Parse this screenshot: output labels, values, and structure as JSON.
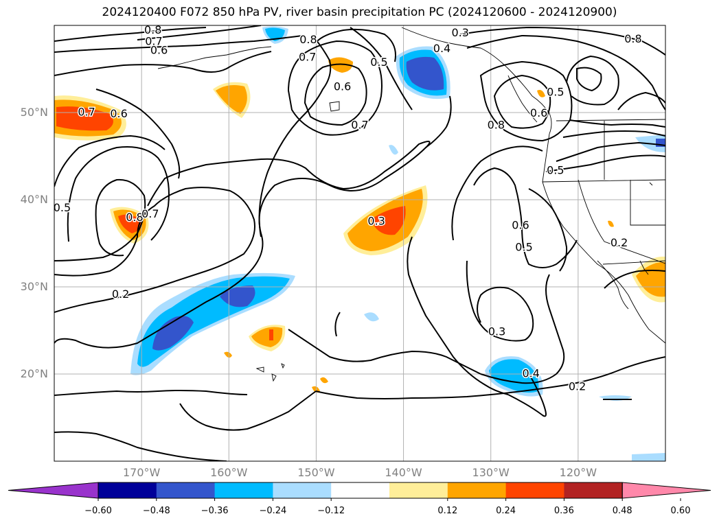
{
  "title": "2024120400 F072 850 hPa PV, river basin precipitation PC (2024120600 - 2024120900)",
  "map": {
    "lon_range": [
      -180,
      -110
    ],
    "lat_range": [
      10,
      60
    ],
    "lat_ticks": [
      {
        "value": 50,
        "label": "50°N"
      },
      {
        "value": 40,
        "label": "40°N"
      },
      {
        "value": 30,
        "label": "30°N"
      },
      {
        "value": 20,
        "label": "20°N"
      }
    ],
    "lon_ticks": [
      {
        "value": -170,
        "label": "170°W"
      },
      {
        "value": -160,
        "label": "160°W"
      },
      {
        "value": -150,
        "label": "150°W"
      },
      {
        "value": -140,
        "label": "140°W"
      },
      {
        "value": -130,
        "label": "130°W"
      },
      {
        "value": -120,
        "label": "120°W"
      }
    ],
    "grid": true,
    "contour_labels": [
      {
        "text": "0.8",
        "lon": -168.7,
        "lat": 59.4
      },
      {
        "text": "0.7",
        "lon": -168.6,
        "lat": 58.1
      },
      {
        "text": "0.6",
        "lon": -168.0,
        "lat": 57.1
      },
      {
        "text": "0.8",
        "lon": -150.9,
        "lat": 58.3
      },
      {
        "text": "0.7",
        "lon": -151.0,
        "lat": 56.3
      },
      {
        "text": "0.5",
        "lon": -142.8,
        "lat": 55.7
      },
      {
        "text": "0.6",
        "lon": -147.0,
        "lat": 52.9
      },
      {
        "text": "0.7",
        "lon": -145.0,
        "lat": 48.5
      },
      {
        "text": "0.3",
        "lon": -133.5,
        "lat": 59.1
      },
      {
        "text": "0.4",
        "lon": -135.6,
        "lat": 57.3
      },
      {
        "text": "0.8",
        "lon": -113.7,
        "lat": 58.4
      },
      {
        "text": "0.5",
        "lon": -122.6,
        "lat": 52.3
      },
      {
        "text": "0.6",
        "lon": -124.5,
        "lat": 49.9
      },
      {
        "text": "0.8",
        "lon": -129.4,
        "lat": 48.5
      },
      {
        "text": "0.5",
        "lon": -122.6,
        "lat": 43.3
      },
      {
        "text": "0.7",
        "lon": -176.3,
        "lat": 50.0
      },
      {
        "text": "0.6",
        "lon": -172.6,
        "lat": 49.8
      },
      {
        "text": "0.5",
        "lon": -179.1,
        "lat": 39.0
      },
      {
        "text": "0.8",
        "lon": -170.8,
        "lat": 37.9
      },
      {
        "text": "0.7",
        "lon": -169.0,
        "lat": 38.3
      },
      {
        "text": "0.3",
        "lon": -143.1,
        "lat": 37.5
      },
      {
        "text": "0.6",
        "lon": -126.6,
        "lat": 37.0
      },
      {
        "text": "0.5",
        "lon": -126.2,
        "lat": 34.5
      },
      {
        "text": "0.2",
        "lon": -115.3,
        "lat": 35.0
      },
      {
        "text": "0.2",
        "lon": -172.4,
        "lat": 29.1
      },
      {
        "text": "0.3",
        "lon": -129.3,
        "lat": 24.8
      },
      {
        "text": "0.4",
        "lon": -125.4,
        "lat": 20.0
      },
      {
        "text": "0.2",
        "lon": -120.1,
        "lat": 18.5
      }
    ]
  },
  "colorbar": {
    "colors": [
      "#9933cc",
      "#000099",
      "#3355cc",
      "#00bbff",
      "#aaddff",
      "#ffffff",
      "#ffee99",
      "#ffa500",
      "#ff4400",
      "#b22222",
      "#ff88aa"
    ],
    "tick_values": [
      -0.6,
      -0.48,
      -0.36,
      -0.24,
      -0.12,
      0.12,
      0.24,
      0.36,
      0.48,
      0.6
    ],
    "tick_labels": [
      "−0.60",
      "−0.48",
      "−0.36",
      "−0.24",
      "−0.12",
      "0.12",
      "0.24",
      "0.36",
      "0.48",
      "0.60"
    ]
  }
}
